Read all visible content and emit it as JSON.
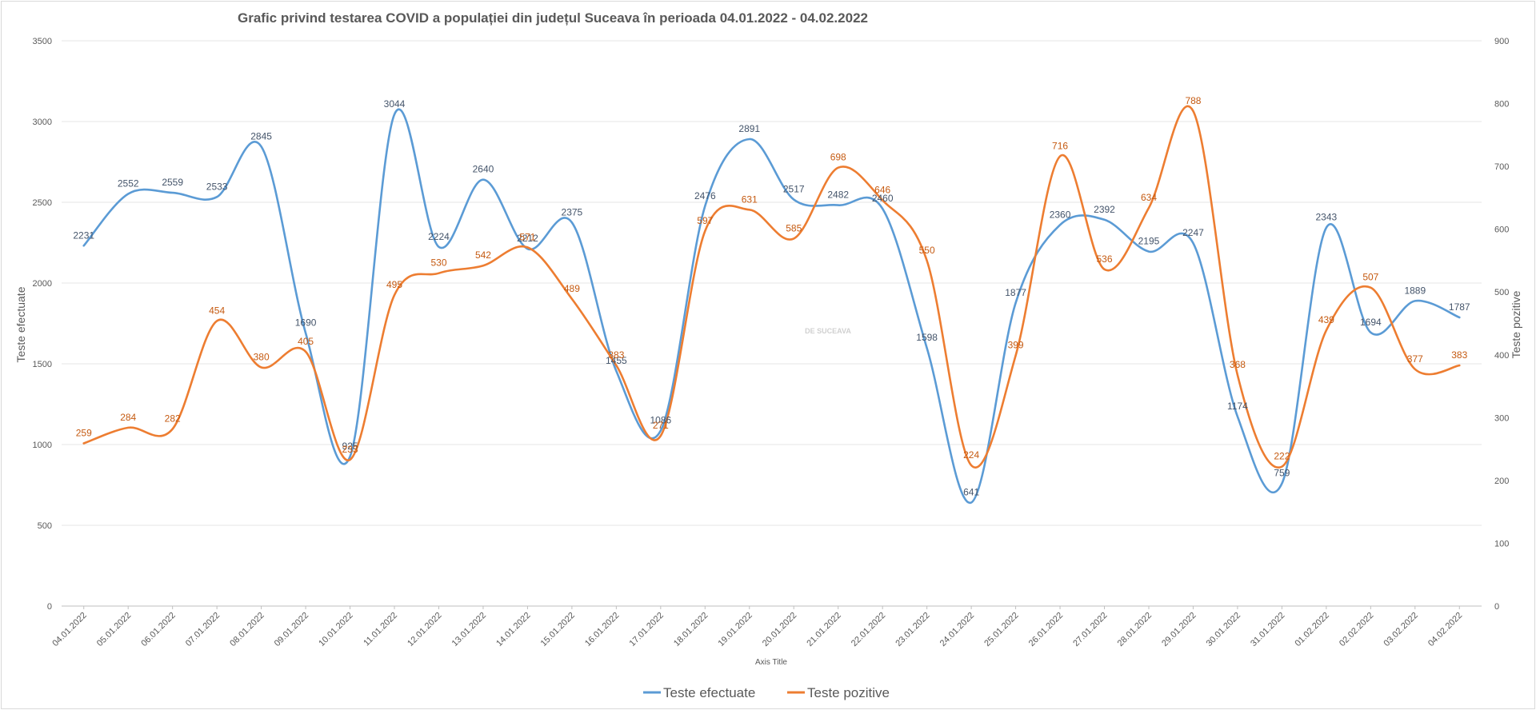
{
  "chart_data": {
    "type": "line",
    "title": "Grafic privind testarea COVID a populației din județul Suceava în perioada 04.01.2022  - 04.02.2022",
    "xlabel": "Axis Title",
    "ylabel_left": "Teste efectuate",
    "ylabel_right": "Teste pozitive",
    "ylim_left": [
      0,
      3500
    ],
    "ylim_right": [
      0,
      900
    ],
    "yticks_left": [
      0,
      500,
      1000,
      1500,
      2000,
      2500,
      3000,
      3500
    ],
    "yticks_right": [
      0,
      100,
      200,
      300,
      400,
      500,
      600,
      700,
      800,
      900
    ],
    "grid": true,
    "legend_position": "bottom",
    "smooth": true,
    "categories": [
      "04.01.2022",
      "05.01.2022",
      "06.01.2022",
      "07.01.2022",
      "08.01.2022",
      "09.01.2022",
      "10.01.2022",
      "11.01.2022",
      "12.01.2022",
      "13.01.2022",
      "14.01.2022",
      "15.01.2022",
      "16.01.2022",
      "17.01.2022",
      "18.01.2022",
      "19.01.2022",
      "20.01.2022",
      "21.01.2022",
      "22.01.2022",
      "23.01.2022",
      "24.01.2022",
      "25.01.2022",
      "26.01.2022",
      "27.01.2022",
      "28.01.2022",
      "29.01.2022",
      "30.01.2022",
      "31.01.2022",
      "01.02.2022",
      "02.02.2022",
      "03.02.2022",
      "04.02.2022"
    ],
    "series": [
      {
        "name": "Teste efectuate",
        "axis": "left",
        "color": "#5b9bd5",
        "label_color": "#44546a",
        "values": [
          2231,
          2552,
          2559,
          2533,
          2845,
          1690,
          925,
          3044,
          2224,
          2640,
          2212,
          2375,
          1455,
          1086,
          2476,
          2891,
          2517,
          2482,
          2460,
          1598,
          641,
          1877,
          2360,
          2392,
          2195,
          2247,
          1174,
          759,
          2343,
          1694,
          1889,
          1787
        ]
      },
      {
        "name": "Teste pozitive",
        "axis": "right",
        "color": "#ed7d31",
        "label_color": "#c55a11",
        "values": [
          259,
          284,
          282,
          454,
          380,
          405,
          233,
          495,
          530,
          542,
          571,
          489,
          383,
          271,
          597,
          631,
          585,
          698,
          646,
          550,
          224,
          399,
          716,
          536,
          634,
          788,
          368,
          222,
          439,
          507,
          377,
          383
        ]
      }
    ]
  },
  "watermark": "DE SUCEAVA"
}
